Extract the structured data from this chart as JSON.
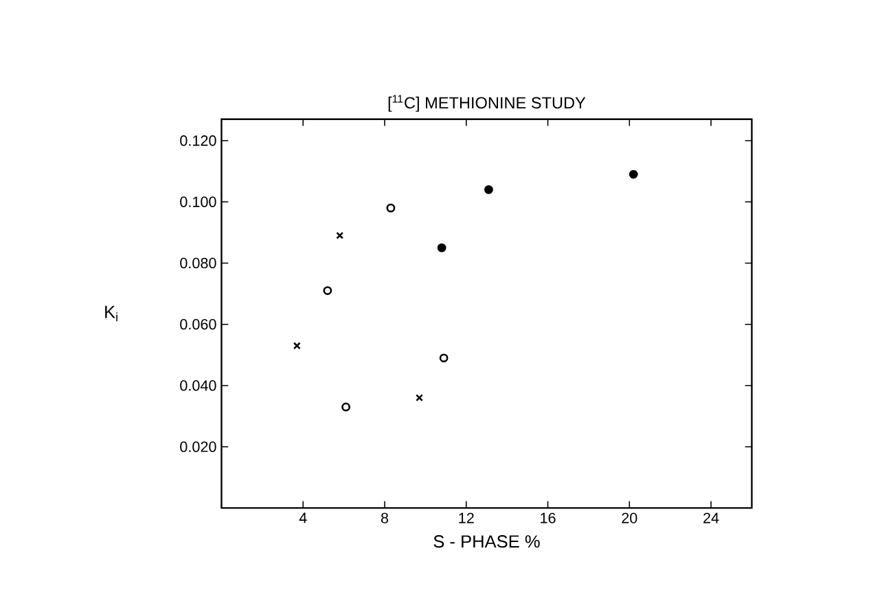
{
  "chart_data": {
    "type": "scatter",
    "title": "[$^{11}$C] METHIONINE STUDY",
    "xlabel": "S - PHASE %",
    "ylabel": "K$_{i}$",
    "xlim": [
      0,
      26
    ],
    "xticks": [
      4,
      8,
      12,
      16,
      20,
      24
    ],
    "ylim": [
      0,
      0.127
    ],
    "yticks": [
      {
        "value": 0.02,
        "label": "0.020"
      },
      {
        "value": 0.04,
        "label": "0.040"
      },
      {
        "value": 0.06,
        "label": "0.060"
      },
      {
        "value": 0.08,
        "label": "0.080"
      },
      {
        "value": 0.1,
        "label": "0.100"
      },
      {
        "value": 0.12,
        "label": "0.120"
      }
    ],
    "grid": false,
    "series": [
      {
        "color": "#000000",
        "marker": "cross",
        "x": [
          3.7,
          5.8,
          9.7
        ],
        "values": [
          0.053,
          0.089,
          0.036
        ]
      },
      {
        "color": "#000000",
        "marker": "circle",
        "x": [
          5.2,
          8.3,
          6.1,
          10.9
        ],
        "values": [
          0.071,
          0.098,
          0.033,
          0.049
        ]
      },
      {
        "color": "#000000",
        "marker": "circle",
        "x": [
          10.8,
          13.1,
          20.2
        ],
        "values": [
          0.085,
          0.104,
          0.109
        ]
      }
    ]
  }
}
